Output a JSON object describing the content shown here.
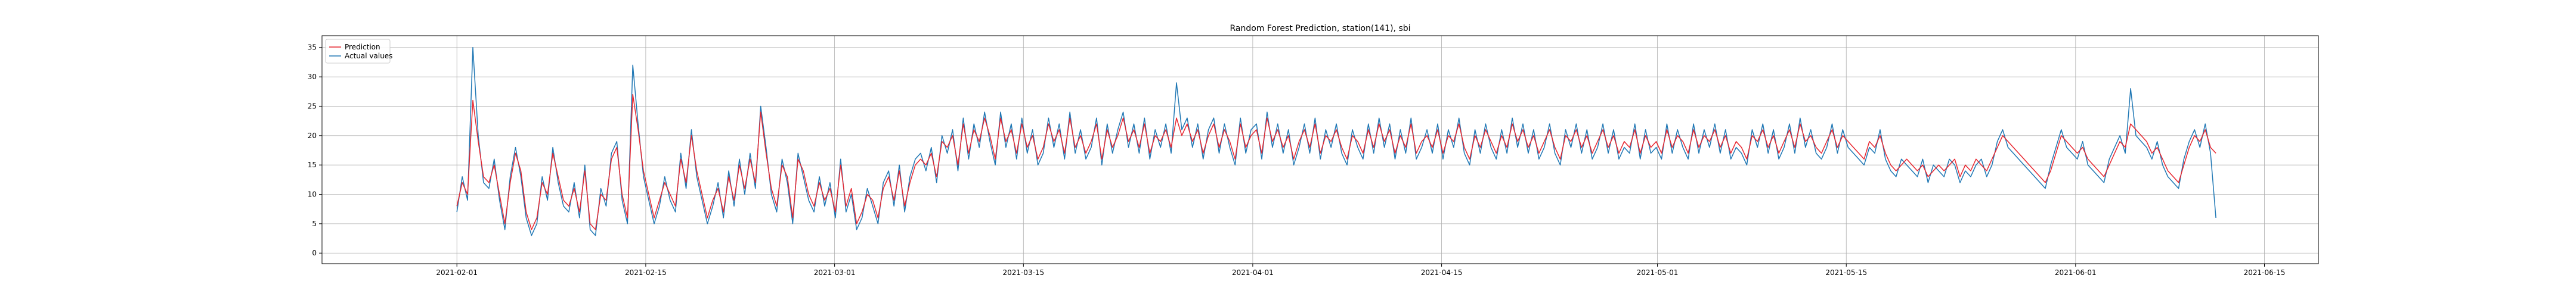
{
  "chart_data": {
    "type": "line",
    "title": "Random Forest Prediction, station(141), sbi",
    "xlabel": "",
    "ylabel": "",
    "x_range": [
      "2021-01-22",
      "2021-06-19"
    ],
    "ylim": [
      -1.8,
      37.0
    ],
    "grid": true,
    "legend_location": "top-left",
    "x_tick_labels": [
      "2021-02-01",
      "2021-02-15",
      "2021-03-01",
      "2021-03-15",
      "2021-04-01",
      "2021-04-15",
      "2021-05-01",
      "2021-05-15",
      "2021-06-01",
      "2021-06-15"
    ],
    "y_ticks": [
      0,
      5,
      10,
      15,
      20,
      25,
      30,
      35
    ],
    "series": [
      {
        "name": "Prediction",
        "color": "#e8262f",
        "values": [
          8,
          12,
          10,
          26,
          19,
          13,
          12,
          15,
          10,
          5,
          12,
          17,
          14,
          7,
          4,
          6,
          12,
          10,
          17,
          13,
          9,
          8,
          11,
          7,
          14,
          5,
          4,
          10,
          9,
          16,
          18,
          10,
          6,
          27,
          21,
          14,
          10,
          6,
          9,
          12,
          10,
          8,
          16,
          12,
          20,
          14,
          10,
          6,
          9,
          11,
          7,
          13,
          9,
          15,
          11,
          16,
          12,
          24,
          17,
          11,
          8,
          15,
          13,
          6,
          16,
          14,
          10,
          8,
          12,
          9,
          11,
          7,
          15,
          8,
          11,
          5,
          7,
          10,
          9,
          6,
          11,
          13,
          9,
          14,
          8,
          12,
          15,
          16,
          15,
          17,
          13,
          19,
          18,
          20,
          15,
          22,
          17,
          21,
          19,
          23,
          20,
          16,
          23,
          19,
          21,
          17,
          22,
          18,
          20,
          16,
          18,
          22,
          19,
          21,
          17,
          23,
          18,
          20,
          17,
          19,
          22,
          16,
          21,
          18,
          20,
          23,
          19,
          21,
          18,
          22,
          17,
          20,
          19,
          21,
          18,
          23,
          20,
          22,
          19,
          21,
          17,
          20,
          22,
          18,
          21,
          19,
          16,
          22,
          18,
          20,
          21,
          17,
          23,
          19,
          21,
          18,
          20,
          16,
          19,
          21,
          18,
          22,
          17,
          20,
          19,
          21,
          18,
          16,
          20,
          19,
          17,
          21,
          18,
          22,
          19,
          21,
          17,
          20,
          18,
          22,
          17,
          19,
          20,
          18,
          21,
          17,
          20,
          19,
          22,
          18,
          16,
          20,
          18,
          21,
          19,
          17,
          20,
          18,
          22,
          19,
          21,
          18,
          20,
          17,
          19,
          21,
          18,
          16,
          20,
          19,
          21,
          18,
          20,
          17,
          19,
          21,
          18,
          20,
          17,
          19,
          18,
          21,
          17,
          20,
          18,
          19,
          17,
          21,
          18,
          20,
          19,
          17,
          21,
          18,
          20,
          19,
          21,
          18,
          20,
          17,
          19,
          18,
          16,
          20,
          19,
          21,
          18,
          20,
          17,
          19,
          21,
          18,
          22,
          19,
          20,
          18,
          17,
          19,
          21,
          18,
          20,
          19,
          18,
          17,
          16,
          19,
          18,
          20,
          17,
          15,
          14,
          15,
          16,
          15,
          14,
          15,
          13,
          14,
          15,
          14,
          15,
          16,
          13,
          15,
          14,
          16,
          15,
          14,
          16,
          18,
          20,
          19,
          18,
          17,
          16,
          15,
          14,
          13,
          12,
          14,
          17,
          20,
          19,
          18,
          17,
          18,
          16,
          15,
          14,
          13,
          15,
          17,
          19,
          18,
          22,
          21,
          20,
          19,
          17,
          18,
          16,
          14,
          13,
          12,
          15,
          18,
          20,
          19,
          21,
          18,
          17
        ]
      },
      {
        "name": "Actual values",
        "color": "#1f77b4",
        "values": [
          7,
          13,
          9,
          35,
          20,
          12,
          11,
          16,
          9,
          4,
          13,
          18,
          13,
          6,
          3,
          5,
          13,
          9,
          18,
          12,
          8,
          7,
          12,
          6,
          15,
          4,
          3,
          11,
          8,
          17,
          19,
          9,
          5,
          32,
          22,
          13,
          9,
          5,
          8,
          13,
          9,
          7,
          17,
          11,
          21,
          13,
          9,
          5,
          8,
          12,
          6,
          14,
          8,
          16,
          10,
          17,
          11,
          25,
          18,
          10,
          7,
          16,
          12,
          5,
          17,
          13,
          9,
          7,
          13,
          8,
          12,
          6,
          16,
          7,
          10,
          4,
          6,
          11,
          8,
          5,
          12,
          14,
          8,
          15,
          7,
          13,
          16,
          17,
          14,
          18,
          12,
          20,
          17,
          21,
          14,
          23,
          16,
          22,
          18,
          24,
          19,
          15,
          24,
          18,
          22,
          16,
          23,
          17,
          21,
          15,
          17,
          23,
          18,
          22,
          16,
          24,
          17,
          21,
          16,
          18,
          23,
          15,
          22,
          17,
          21,
          24,
          18,
          22,
          17,
          23,
          16,
          21,
          18,
          22,
          17,
          29,
          21,
          23,
          18,
          22,
          16,
          21,
          23,
          17,
          22,
          18,
          15,
          23,
          17,
          21,
          22,
          16,
          24,
          18,
          22,
          17,
          21,
          15,
          18,
          22,
          17,
          23,
          16,
          21,
          18,
          22,
          17,
          15,
          21,
          18,
          16,
          22,
          17,
          23,
          18,
          22,
          16,
          21,
          17,
          23,
          16,
          18,
          21,
          17,
          22,
          16,
          21,
          18,
          23,
          17,
          15,
          21,
          17,
          22,
          18,
          16,
          21,
          17,
          23,
          18,
          22,
          17,
          21,
          16,
          18,
          22,
          17,
          15,
          21,
          18,
          22,
          17,
          21,
          16,
          18,
          22,
          17,
          21,
          16,
          18,
          17,
          22,
          16,
          21,
          17,
          18,
          16,
          22,
          17,
          21,
          18,
          16,
          22,
          17,
          21,
          18,
          22,
          17,
          21,
          16,
          18,
          17,
          15,
          21,
          18,
          22,
          17,
          21,
          16,
          18,
          22,
          17,
          23,
          18,
          21,
          17,
          16,
          18,
          22,
          17,
          21,
          18,
          17,
          16,
          15,
          18,
          17,
          21,
          16,
          14,
          13,
          16,
          15,
          14,
          13,
          16,
          12,
          15,
          14,
          13,
          16,
          15,
          12,
          14,
          13,
          15,
          16,
          13,
          15,
          19,
          21,
          18,
          17,
          16,
          15,
          14,
          13,
          12,
          11,
          15,
          18,
          21,
          18,
          17,
          16,
          19,
          15,
          14,
          13,
          12,
          16,
          18,
          20,
          17,
          28,
          20,
          19,
          18,
          16,
          19,
          15,
          13,
          12,
          11,
          16,
          19,
          21,
          18,
          22,
          17,
          6
        ]
      }
    ]
  }
}
